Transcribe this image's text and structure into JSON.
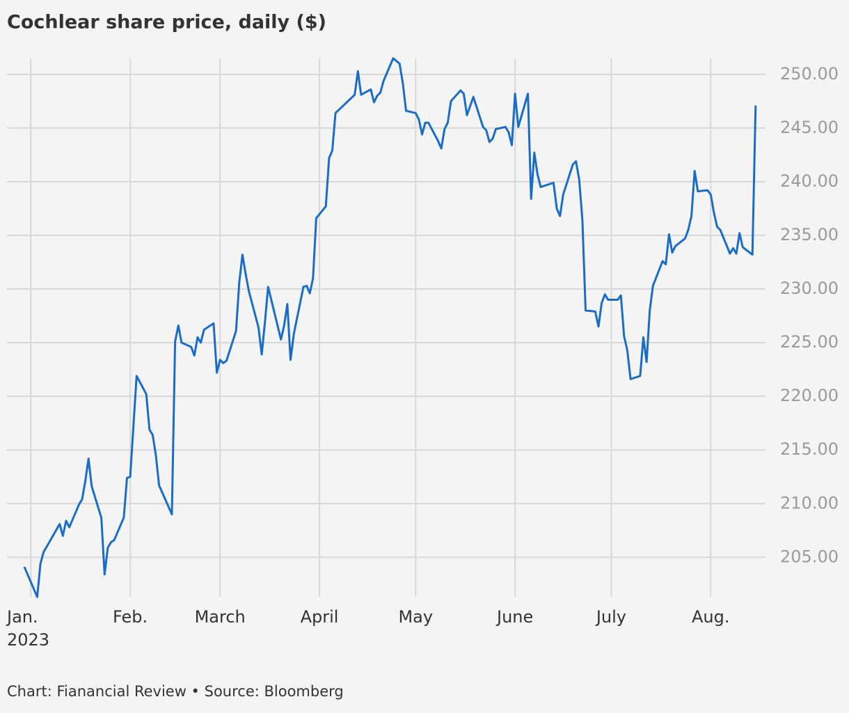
{
  "chart_data": {
    "type": "line",
    "title": "Cochlear share price, daily ($)",
    "xlabel": "2023",
    "source": "Chart: Fianancial Review • Source: Bloomberg",
    "x": [
      -2,
      2,
      3,
      4,
      5,
      9,
      10,
      11,
      12,
      15,
      16,
      17,
      18,
      19,
      22,
      23,
      24,
      25,
      26,
      29,
      30,
      31,
      33,
      36,
      37,
      38,
      39,
      40,
      44,
      45,
      46,
      47,
      50,
      51,
      52,
      53,
      54,
      57,
      58,
      59,
      60,
      61,
      64,
      65,
      66,
      67,
      68,
      71,
      72,
      73,
      74,
      78,
      79,
      80,
      81,
      82,
      85,
      86,
      87,
      88,
      89,
      92,
      93,
      94,
      95,
      101,
      102,
      103,
      106,
      107,
      108,
      109,
      110,
      113,
      115,
      116,
      117,
      120,
      121,
      122,
      123,
      124,
      127,
      128,
      129,
      130,
      131,
      134,
      135,
      136,
      138,
      141,
      142,
      143,
      144,
      145,
      148,
      149,
      150,
      151,
      152,
      155,
      156,
      157,
      158,
      159,
      163,
      164,
      165,
      166,
      169,
      170,
      171,
      172,
      173,
      176,
      177,
      178,
      179,
      180,
      183,
      184,
      185,
      186,
      187,
      190,
      191,
      192,
      193,
      194,
      197,
      198,
      199,
      200,
      201,
      204,
      205,
      206,
      207,
      208,
      211,
      212,
      213,
      214,
      215,
      218,
      219,
      220,
      221,
      222,
      225,
      226
    ],
    "series": [
      {
        "name": "Cochlear",
        "color": "#1a6dc6",
        "values": [
          204.1,
          201.3,
          204.4,
          205.5,
          206.0,
          208.1,
          207.0,
          208.4,
          207.8,
          209.9,
          210.4,
          212.1,
          214.2,
          211.6,
          208.7,
          203.4,
          205.9,
          206.4,
          206.6,
          208.7,
          212.4,
          212.5,
          221.9,
          220.2,
          216.9,
          216.4,
          214.5,
          211.7,
          209.0,
          225.1,
          226.6,
          225.0,
          224.6,
          223.8,
          225.5,
          225.0,
          226.2,
          226.8,
          222.2,
          223.4,
          223.1,
          223.3,
          226.1,
          230.6,
          233.2,
          231.4,
          229.8,
          226.4,
          223.9,
          226.9,
          230.2,
          225.3,
          226.6,
          228.6,
          223.4,
          225.8,
          230.2,
          230.3,
          229.6,
          231.0,
          236.6,
          237.7,
          242.2,
          242.9,
          246.4,
          248.1,
          250.3,
          248.1,
          248.6,
          247.4,
          248.0,
          248.3,
          249.4,
          251.5,
          251.0,
          249.2,
          246.6,
          246.4,
          245.8,
          244.4,
          245.5,
          245.5,
          243.8,
          243.1,
          244.9,
          245.5,
          247.5,
          248.5,
          248.2,
          246.2,
          247.9,
          245.1,
          244.8,
          243.7,
          244.0,
          244.9,
          245.1,
          244.6,
          243.4,
          248.2,
          245.1,
          248.2,
          238.4,
          242.7,
          240.7,
          239.5,
          239.9,
          237.5,
          236.8,
          238.8,
          241.6,
          241.9,
          240.2,
          236.4,
          228.0,
          227.9,
          226.5,
          228.7,
          229.5,
          229.0,
          229.0,
          229.4,
          225.6,
          224.3,
          221.6,
          221.9,
          225.5,
          223.2,
          228.0,
          230.3,
          232.6,
          232.3,
          235.1,
          233.4,
          234.0,
          234.7,
          235.5,
          236.8,
          241.0,
          239.1,
          239.2,
          238.8,
          237.1,
          235.8,
          235.5,
          233.3,
          233.8,
          233.3,
          235.2,
          233.9,
          233.2,
          247.1
        ]
      }
    ],
    "xlim": [
      -7,
      228
    ],
    "xticks": [
      {
        "value": 0,
        "label": "Jan."
      },
      {
        "value": 31,
        "label": "Feb."
      },
      {
        "value": 59,
        "label": "March"
      },
      {
        "value": 90,
        "label": "April"
      },
      {
        "value": 120,
        "label": "May"
      },
      {
        "value": 151,
        "label": "June"
      },
      {
        "value": 181,
        "label": "July"
      },
      {
        "value": 212,
        "label": "Aug."
      }
    ],
    "ylim": [
      201,
      252
    ],
    "yticks": [
      {
        "value": 205,
        "label": "205.00"
      },
      {
        "value": 210,
        "label": "210.00"
      },
      {
        "value": 215,
        "label": "215.00"
      },
      {
        "value": 220,
        "label": "220.00"
      },
      {
        "value": 225,
        "label": "225.00"
      },
      {
        "value": 230,
        "label": "230.00"
      },
      {
        "value": 235,
        "label": "235.00"
      },
      {
        "value": 240,
        "label": "240.00"
      },
      {
        "value": 245,
        "label": "245.00"
      },
      {
        "value": 250,
        "label": "250.00"
      }
    ],
    "grid": true
  }
}
